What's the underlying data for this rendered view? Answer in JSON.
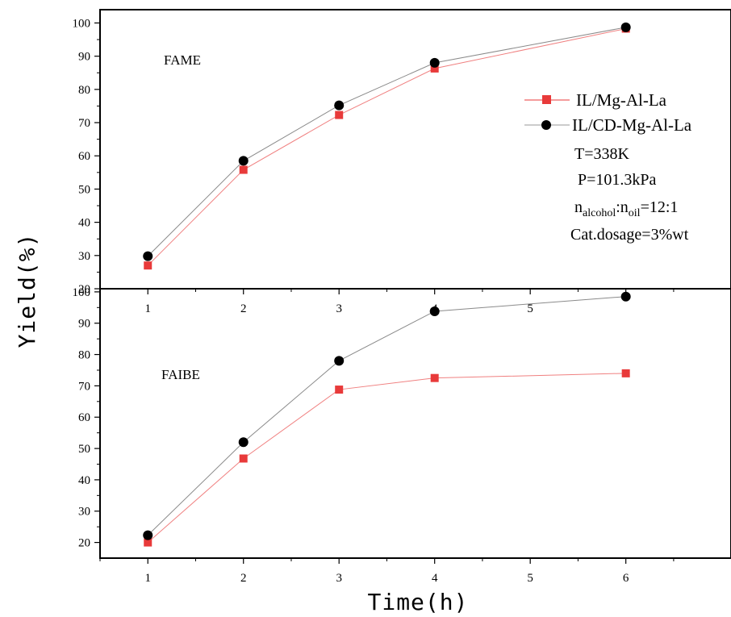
{
  "chart_data": [
    {
      "type": "line",
      "panel_label": "FAME",
      "x": [
        1,
        2,
        3,
        4,
        6
      ],
      "xlim": [
        0.5,
        7.1
      ],
      "ylim": [
        20,
        104
      ],
      "yticks": [
        20,
        30,
        40,
        50,
        60,
        70,
        80,
        90,
        100
      ],
      "xticks": [
        1,
        2,
        3,
        4,
        5
      ],
      "series": [
        {
          "name": "IL/Mg-Al-La",
          "values": [
            27,
            55.8,
            72.3,
            86.3,
            98.3
          ],
          "color": "#e83a3a",
          "marker": "square"
        },
        {
          "name": "IL/CD-Mg-Al-La",
          "values": [
            29.8,
            58.5,
            75.2,
            88,
            98.7
          ],
          "color": "#000000",
          "marker": "circle"
        }
      ]
    },
    {
      "type": "line",
      "panel_label": "FAIBE",
      "x": [
        1,
        2,
        3,
        4,
        6
      ],
      "xlim": [
        0.5,
        7.1
      ],
      "ylim": [
        15,
        101
      ],
      "yticks": [
        20,
        30,
        40,
        50,
        60,
        70,
        80,
        90,
        100
      ],
      "xticks": [
        1,
        2,
        3,
        4,
        5,
        6
      ],
      "series": [
        {
          "name": "IL/Mg-Al-La",
          "values": [
            20,
            46.8,
            68.8,
            72.5,
            74
          ],
          "color": "#e83a3a",
          "marker": "square"
        },
        {
          "name": "IL/CD-Mg-Al-La",
          "values": [
            22.3,
            52,
            78,
            93.8,
            98.5
          ],
          "color": "#000000",
          "marker": "circle"
        }
      ]
    }
  ],
  "ylabel": "Yield(%)",
  "xlabel": "Time(h)",
  "legend": {
    "items": [
      "IL/Mg-Al-La",
      "IL/CD-Mg-Al-La"
    ],
    "conditions": {
      "temperature": "T=338K",
      "pressure": "P=101.3kPa",
      "ratio_n1": "n",
      "ratio_sub1": "alcohol",
      "ratio_n2": ":n",
      "ratio_sub2": "oil",
      "ratio_value": "=12:1",
      "dosage": "Cat.dosage=3%wt"
    }
  }
}
